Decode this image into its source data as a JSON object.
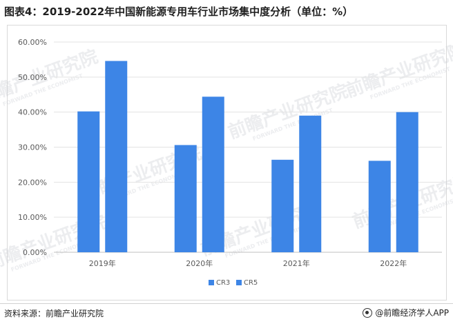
{
  "header": {
    "title": "图表4：2019-2022年中国新能源专用车行业市场集中度分析（单位：%）"
  },
  "footer": {
    "source": "资料来源：前瞻产业研究院",
    "brand": "@前瞻经济学人APP"
  },
  "watermark": {
    "text": "前瞻产业研究院",
    "subtext": "FORWARD THE ECONOMIST"
  },
  "chart_data": {
    "type": "bar",
    "categories": [
      "2019年",
      "2020年",
      "2021年",
      "2022年"
    ],
    "series": [
      {
        "name": "CR3",
        "values": [
          40.2,
          30.6,
          26.4,
          26.1
        ],
        "color": "#3d85e6"
      },
      {
        "name": "CR5",
        "values": [
          54.6,
          44.4,
          39.0,
          40.0
        ],
        "color": "#3d85e6"
      }
    ],
    "ylim": [
      0,
      60
    ],
    "yticks": [
      "0.00%",
      "10.00%",
      "20.00%",
      "30.00%",
      "40.00%",
      "50.00%",
      "60.00%"
    ],
    "ytick_values": [
      0,
      10,
      20,
      30,
      40,
      50,
      60
    ],
    "grid": true,
    "legend_position": "bottom"
  }
}
